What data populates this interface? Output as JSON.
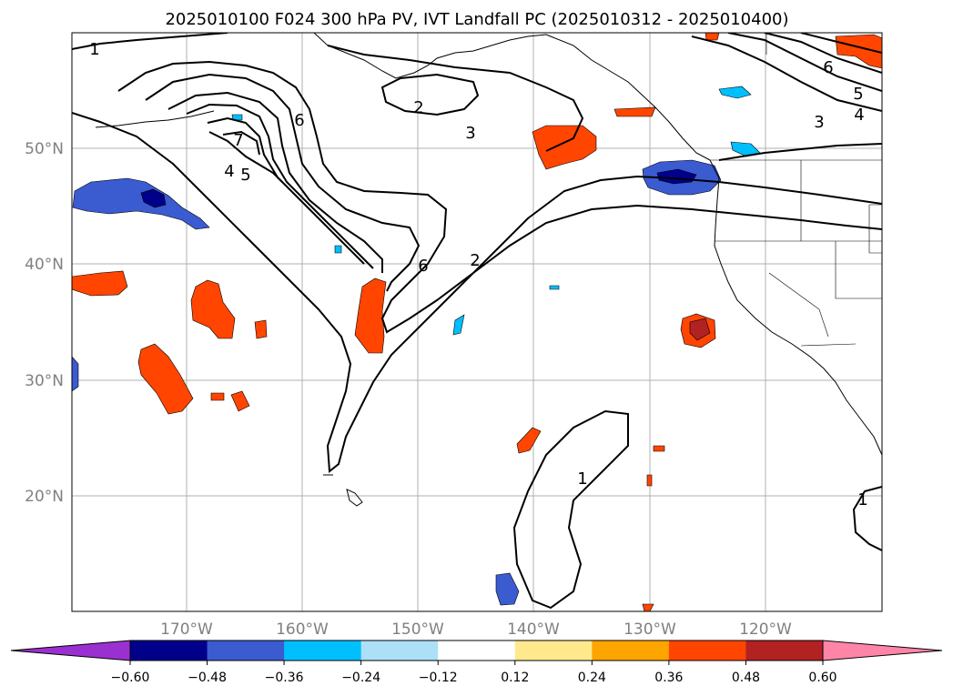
{
  "title": "2025010100 F024 300 hPa PV, IVT Landfall PC (2025010312 - 2025010400)",
  "map": {
    "lon_range": [
      180,
      110
    ],
    "lat_range": [
      10,
      60
    ],
    "lat_ticks": [
      {
        "label": "50°N",
        "lat": 50
      },
      {
        "label": "40°N",
        "lat": 40
      },
      {
        "label": "30°N",
        "lat": 30
      },
      {
        "label": "20°N",
        "lat": 20
      }
    ],
    "lon_ticks": [
      {
        "label": "170°W",
        "lon": 170
      },
      {
        "label": "160°W",
        "lon": 160
      },
      {
        "label": "150°W",
        "lon": 150
      },
      {
        "label": "140°W",
        "lon": 140
      },
      {
        "label": "130°W",
        "lon": 130
      },
      {
        "label": "120°W",
        "lon": 120
      }
    ],
    "grid": true
  },
  "contour_labels": [
    "1",
    "2",
    "3",
    "6",
    "7",
    "4",
    "5",
    "6",
    "2",
    "3",
    "4",
    "5",
    "6",
    "1",
    "1"
  ],
  "colorbar": {
    "ticks": [
      "−0.60",
      "−0.48",
      "−0.36",
      "−0.24",
      "−0.12",
      "0.12",
      "0.24",
      "0.36",
      "0.48",
      "0.60"
    ],
    "colors": [
      "#9a30d0",
      "#00008b",
      "#3b5bd1",
      "#00bfff",
      "#ade0f7",
      "#ffffff",
      "#ffe98c",
      "#ffa500",
      "#ff4500",
      "#b22222",
      "#ff85a8"
    ],
    "extend": "both"
  }
}
